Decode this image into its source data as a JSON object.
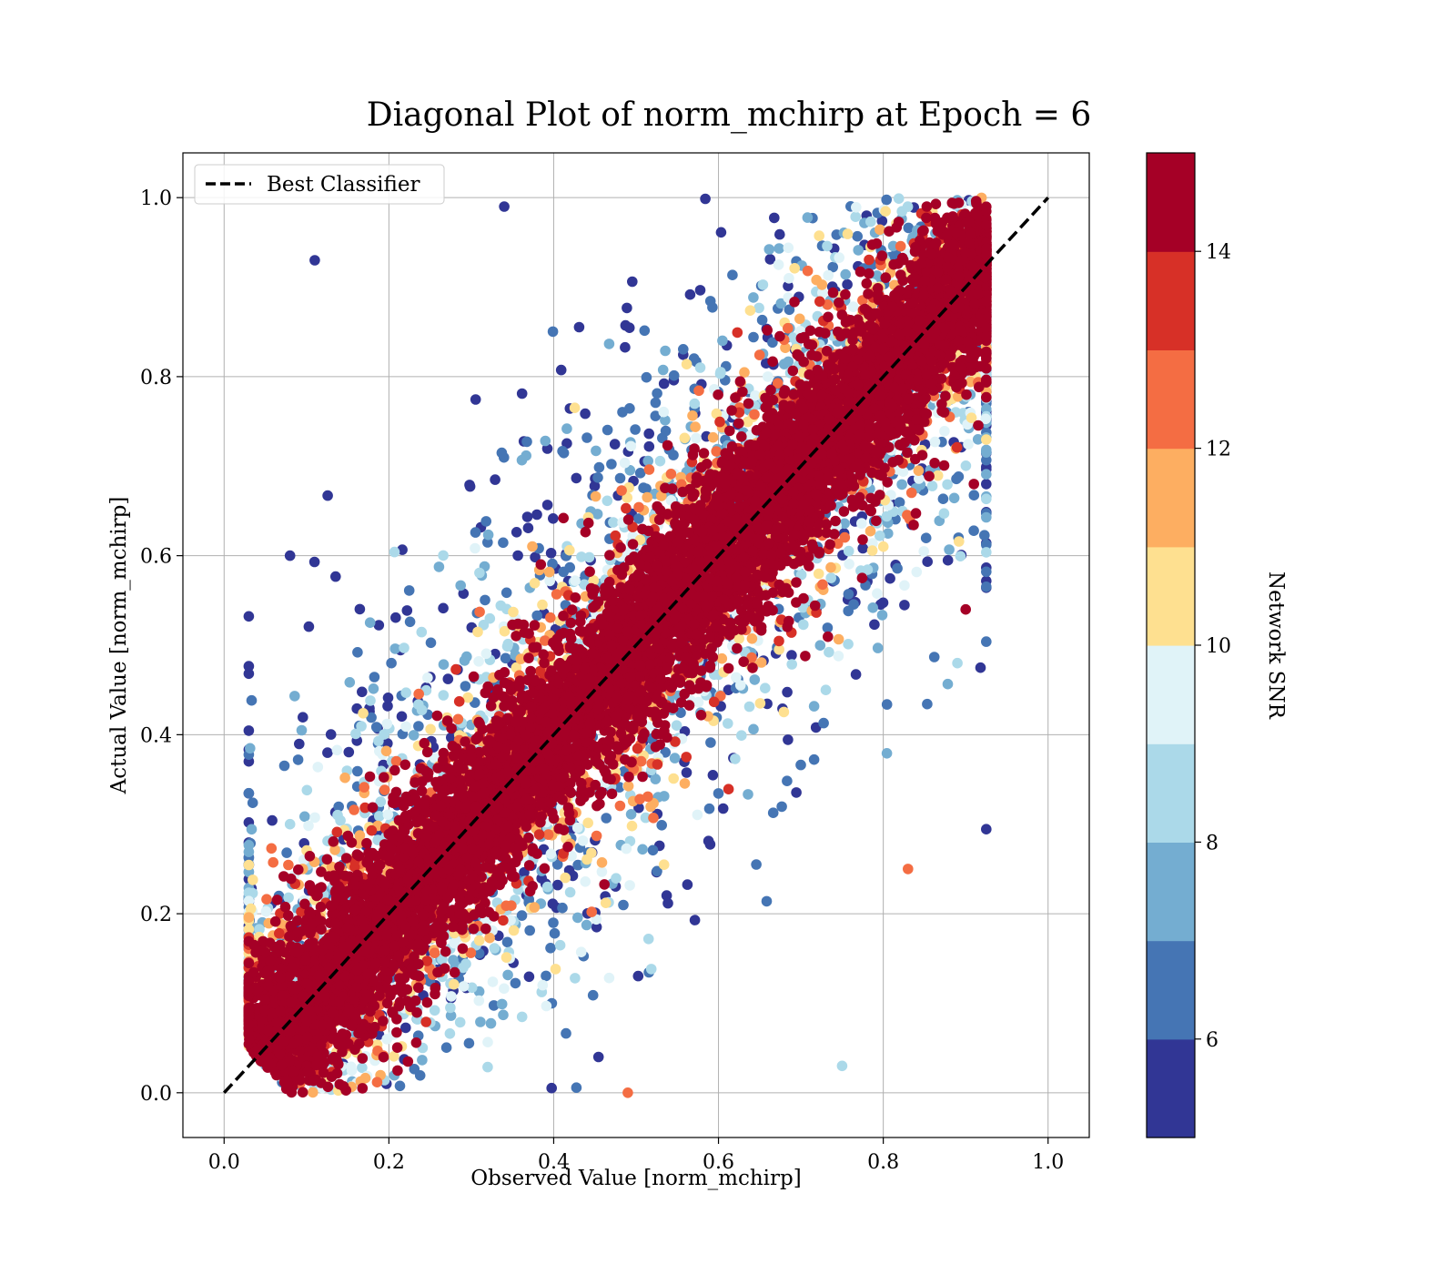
{
  "chart_data": {
    "type": "scatter",
    "title": "Diagonal Plot of norm_mchirp at Epoch = 6",
    "xlabel": "Observed Value [norm_mchirp]",
    "ylabel": "Actual Value [norm_mchirp]",
    "xlim": [
      -0.05,
      1.05
    ],
    "ylim": [
      -0.05,
      1.05
    ],
    "x_ticks": [
      "0.0",
      "0.2",
      "0.4",
      "0.6",
      "0.8",
      "1.0"
    ],
    "y_ticks": [
      "0.0",
      "0.2",
      "0.4",
      "0.6",
      "0.8",
      "1.0"
    ],
    "grid": true,
    "legend": {
      "placement": "upper-left",
      "entries": [
        "Best Classifier"
      ]
    },
    "reference_line": {
      "name": "Best Classifier",
      "x": [
        0,
        1
      ],
      "y": [
        0,
        1
      ],
      "style": "dashed",
      "color": "#000000"
    },
    "point_cloud": {
      "count": 13000,
      "x_range": [
        0.03,
        0.93
      ],
      "y_range": [
        0.0,
        1.0
      ],
      "note_color_variable": "Network SNR"
    },
    "colorbar": {
      "label": "Network SNR",
      "range": [
        5,
        15
      ],
      "ticks": [
        "6",
        "8",
        "10",
        "12",
        "14"
      ],
      "tick_values": [
        6,
        8,
        10,
        12,
        14
      ],
      "colors": [
        "#313695",
        "#4575b4",
        "#74add1",
        "#abd9e9",
        "#e0f3f8",
        "#fee090",
        "#fdae61",
        "#f46d43",
        "#d73027",
        "#a50026"
      ],
      "bins": [
        5,
        6,
        7,
        8,
        9,
        10,
        11,
        12,
        13,
        14,
        15
      ]
    },
    "sample_points": [
      {
        "x": 0.11,
        "y": 0.93,
        "snr": 5.5
      },
      {
        "x": 0.34,
        "y": 0.99,
        "snr": 5.8
      },
      {
        "x": 0.49,
        "y": 0.0,
        "snr": 12.5
      },
      {
        "x": 0.75,
        "y": 0.03,
        "snr": 8.5
      },
      {
        "x": 0.83,
        "y": 0.25,
        "snr": 12.5
      },
      {
        "x": 0.89,
        "y": 0.48,
        "snr": 8.5
      },
      {
        "x": 0.9,
        "y": 0.54,
        "snr": 14.5
      },
      {
        "x": 0.08,
        "y": 0.6,
        "snr": 5.5
      },
      {
        "x": 0.08,
        "y": 0.3,
        "snr": 8.5
      },
      {
        "x": 0.91,
        "y": 0.68,
        "snr": 14.5
      }
    ]
  }
}
